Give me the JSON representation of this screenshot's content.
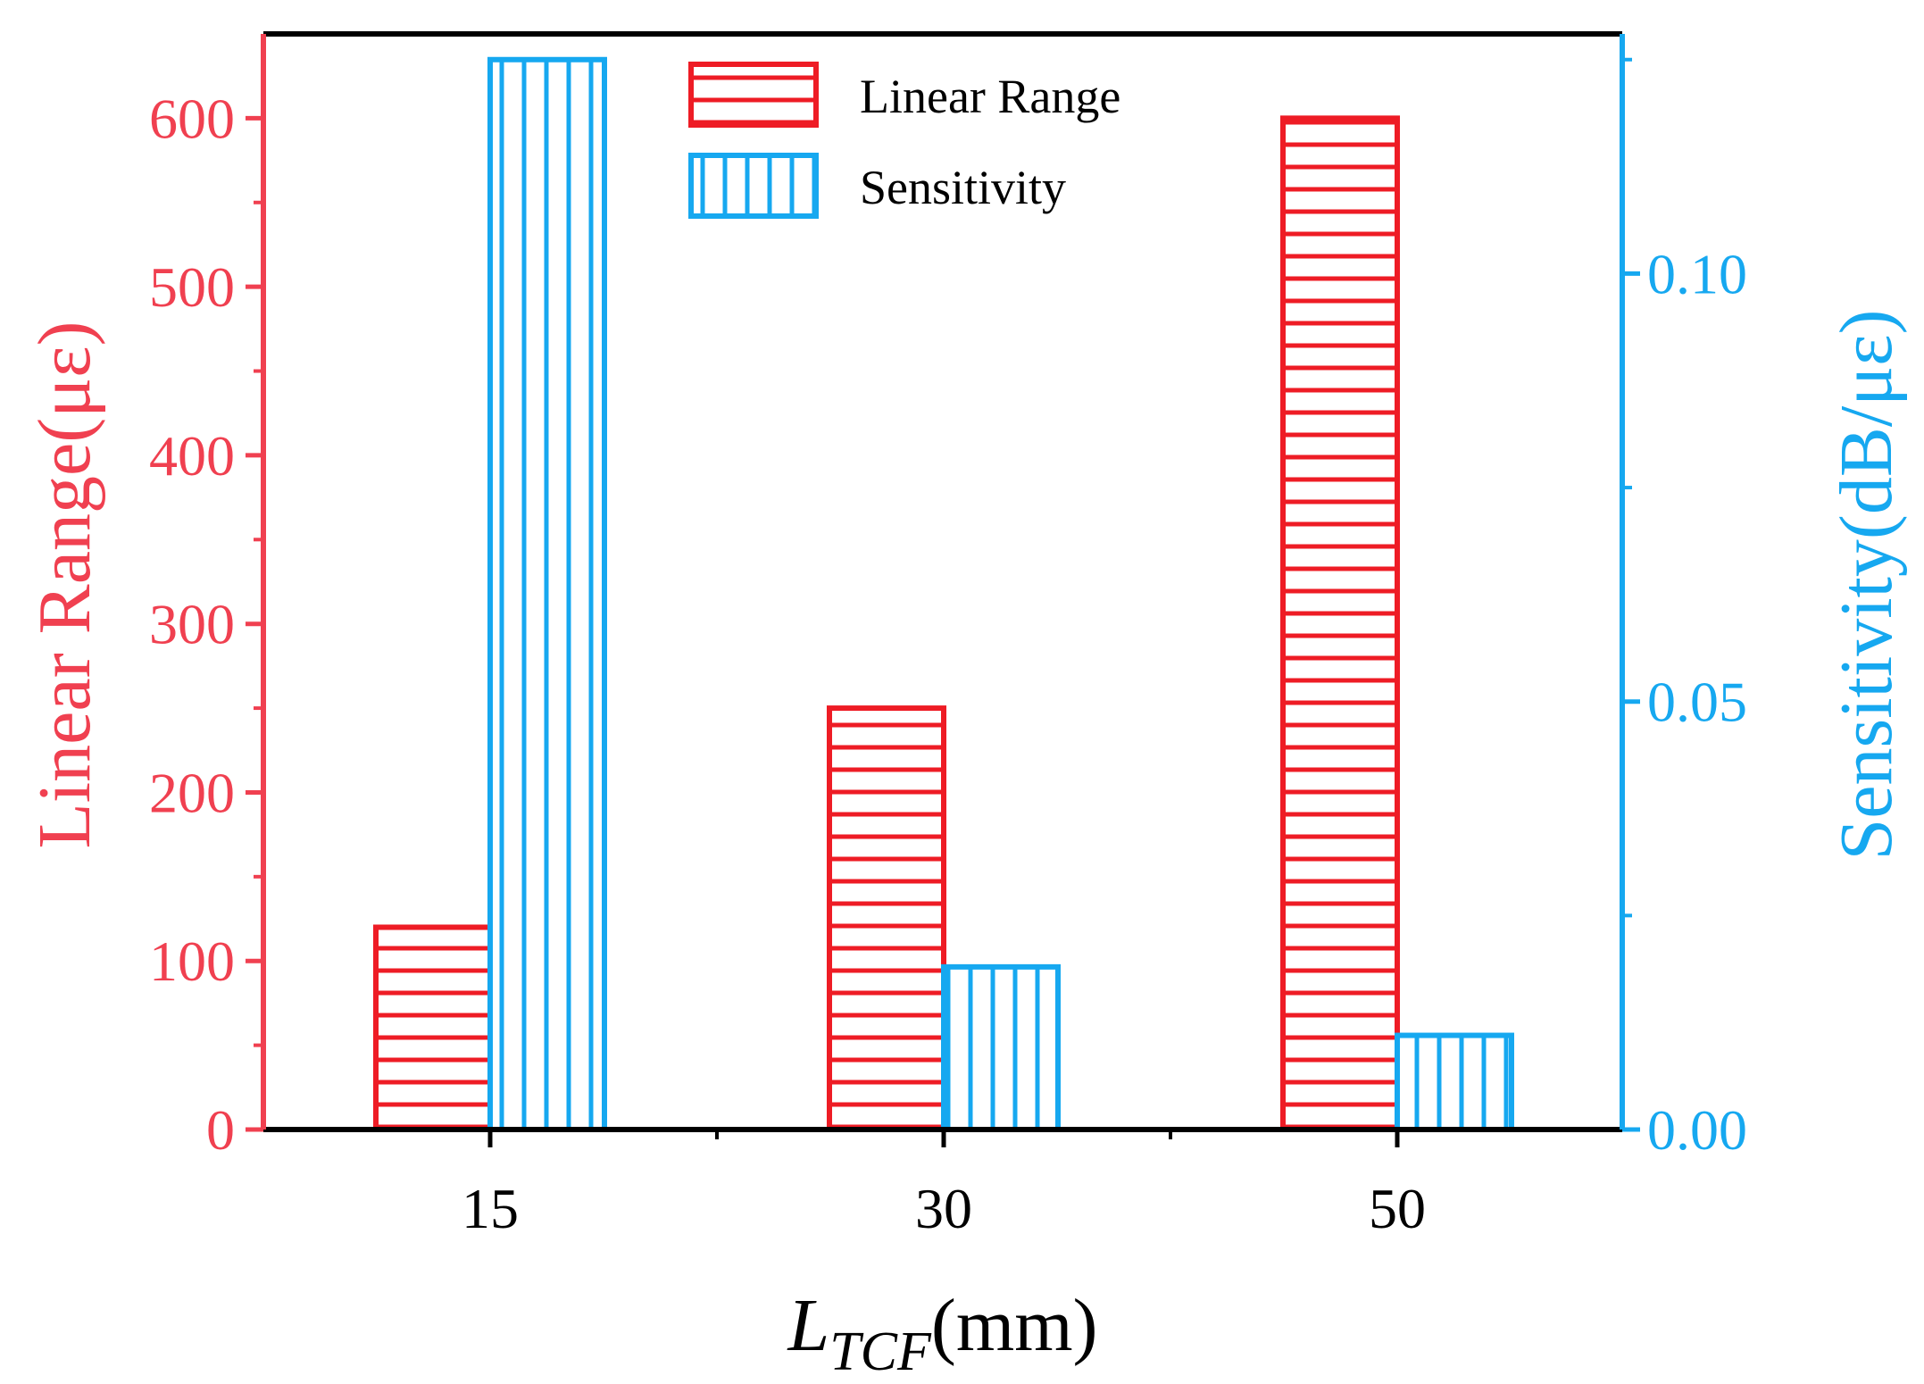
{
  "colors": {
    "left_axis": "#f04050",
    "right_axis": "#16a8f0",
    "linear_range_bar": "#ee1c25",
    "sensitivity_bar": "#16a8f0",
    "frame": "#000000"
  },
  "chart_data": {
    "type": "bar",
    "categories": [
      "15",
      "30",
      "50"
    ],
    "xlabel_main": "L",
    "xlabel_sub": "TCF",
    "xlabel_unit": "(mm)",
    "series": [
      {
        "name": "Linear Range",
        "axis": "left",
        "values": [
          120,
          250,
          600
        ],
        "pattern": "horizontal-hatch"
      },
      {
        "name": "Sensitivity",
        "axis": "right",
        "values": [
          0.125,
          0.019,
          0.011
        ],
        "pattern": "vertical-hatch"
      }
    ],
    "y_left": {
      "label": "Linear Range(με)",
      "ylim": [
        0,
        650
      ],
      "ticks": [
        "0",
        "100",
        "200",
        "300",
        "400",
        "500",
        "600"
      ]
    },
    "y_right": {
      "label": "Sensitivity(dB/με)",
      "ylim": [
        0,
        0.128
      ],
      "ticks": [
        "0.00",
        "0.05",
        "0.10"
      ]
    },
    "legend": {
      "placement": "top-center"
    },
    "grid": false
  }
}
